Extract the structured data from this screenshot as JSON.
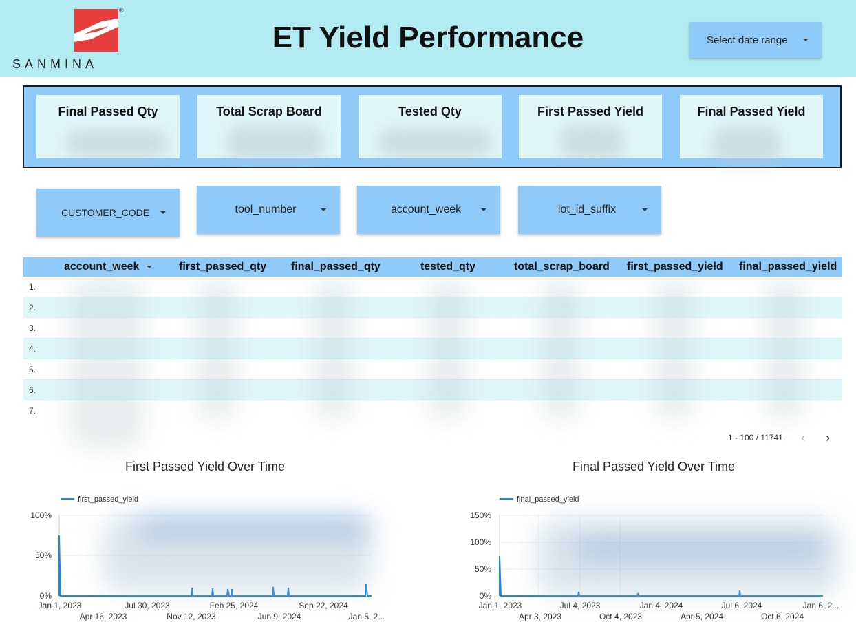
{
  "header": {
    "logo_text": "SANMINA",
    "logo_reg": "®",
    "title": "ET Yield Performance",
    "date_range_label": "Select date range",
    "colors": {
      "bg": "#b2ebf2",
      "logo_red": "#e83e3e"
    }
  },
  "kpis": [
    {
      "label": "Final Passed Qty",
      "value": ""
    },
    {
      "label": "Total Scrap Board",
      "value": ""
    },
    {
      "label": "Tested Qty",
      "value": ""
    },
    {
      "label": "First Passed Yield",
      "value": ""
    },
    {
      "label": "Final Passed Yield",
      "value": ""
    }
  ],
  "filters": [
    {
      "label": "CUSTOMER_CODE"
    },
    {
      "label": "tool_number"
    },
    {
      "label": "account_week"
    },
    {
      "label": "lot_id_suffix"
    }
  ],
  "table": {
    "columns": [
      "account_week",
      "first_passed_qty",
      "final_passed_qty",
      "tested_qty",
      "total_scrap_board",
      "first_passed_yield",
      "final_passed_yield"
    ],
    "sort_icon": "sort-down-icon",
    "row_numbers": [
      "1.",
      "2.",
      "3.",
      "4.",
      "5.",
      "6.",
      "7."
    ],
    "pagination": "1 - 100 / 11741"
  },
  "charts": [
    {
      "title": "First Passed Yield Over Time",
      "legend": "first_passed_yield",
      "y_ticks": [
        "100%",
        "50%",
        "0%"
      ],
      "x_ticks_top": [
        "Jan 1, 2023",
        "Jul 30, 2023",
        "Feb 25, 2024",
        "Sep 22, 2024"
      ],
      "x_ticks_bottom": [
        "Apr 16, 2023",
        "Nov 12, 2023",
        "Jun 9, 2024",
        "Jan 5, 2..."
      ]
    },
    {
      "title": "Final Passed Yield Over Time",
      "legend": "final_passed_yield",
      "y_ticks": [
        "150%",
        "100%",
        "50%",
        "0%"
      ],
      "x_ticks_top": [
        "Jan 1, 2023",
        "Jul 4, 2023",
        "Jan 4, 2024",
        "Jul 6, 2024",
        "Jan 6, 2..."
      ],
      "x_ticks_bottom": [
        "Apr 3, 2023",
        "Oct 4, 2023",
        "Apr 5, 2024",
        "Oct 6, 2024"
      ]
    }
  ]
}
